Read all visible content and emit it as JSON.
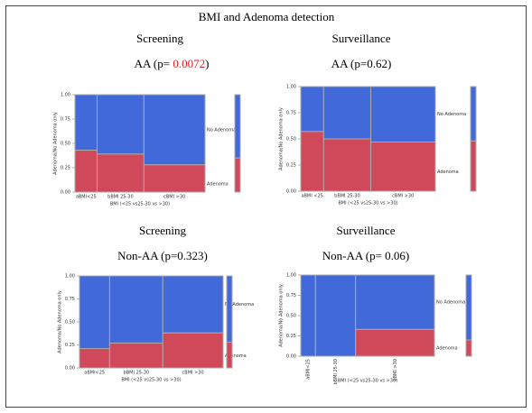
{
  "title": "BMI and Adenoma detection",
  "chart_data": [
    {
      "type": "mosaic",
      "heading": "Screening",
      "subtitle": [
        {
          "text": "AA (p= "
        },
        {
          "text": "0.0072",
          "color": "#e02020"
        },
        {
          "text": ")"
        }
      ],
      "categories": [
        "aBMI<25",
        "bBMI 25-30",
        "cBMI >30"
      ],
      "widths": [
        0.17,
        0.36,
        0.47
      ],
      "series": [
        {
          "name": "No Adenoma",
          "color": "#4169d9",
          "values": [
            0.57,
            0.61,
            0.72
          ],
          "overall": 0.65
        },
        {
          "name": "Adenoma",
          "color": "#d0495a",
          "values": [
            0.43,
            0.39,
            0.28
          ],
          "overall": 0.35
        }
      ],
      "ylim": [
        0,
        1
      ],
      "yticks": [
        {
          "value": 0,
          "label": "0.00"
        },
        {
          "value": 0.25,
          "label": "0.25"
        },
        {
          "value": 0.5,
          "label": "0.50"
        },
        {
          "value": 0.75,
          "label": "0.75"
        },
        {
          "value": 1,
          "label": "1.00"
        }
      ],
      "xlabel": "BMI (<25 vs25-30 vs >30)",
      "ylabel": "Adenoma/No Adenoma only"
    },
    {
      "type": "mosaic",
      "heading": "Surveillance",
      "subtitle": [
        {
          "text": "AA (p=0.62)"
        }
      ],
      "categories": [
        "aBMI <25",
        "bBMI 25-30",
        "cBMI >30"
      ],
      "widths": [
        0.17,
        0.35,
        0.48
      ],
      "series": [
        {
          "name": "No Adenoma",
          "color": "#4169d9",
          "values": [
            0.43,
            0.5,
            0.53
          ],
          "overall": 0.52
        },
        {
          "name": "Adenoma",
          "color": "#d0495a",
          "values": [
            0.57,
            0.5,
            0.47
          ],
          "overall": 0.48
        }
      ],
      "ylim": [
        0,
        1
      ],
      "yticks": [
        {
          "value": 0,
          "label": "0.00"
        },
        {
          "value": 0.25,
          "label": "0.25"
        },
        {
          "value": 0.5,
          "label": "0.50"
        },
        {
          "value": 0.75,
          "label": "0.75"
        },
        {
          "value": 1,
          "label": "1.00"
        }
      ],
      "xlabel": "BMI (<25 vs25-30 vs >30)",
      "ylabel": "Adenoma/No Adenoma only"
    },
    {
      "type": "mosaic",
      "heading": "Screening",
      "subtitle": [
        {
          "text": "Non-AA (p=0.323)"
        }
      ],
      "categories": [
        "aBMI<25",
        "bBMI 25-30",
        "cBMI >30"
      ],
      "widths": [
        0.21,
        0.37,
        0.42
      ],
      "series": [
        {
          "name": "No Adenoma",
          "color": "#4169d9",
          "values": [
            0.79,
            0.73,
            0.62
          ],
          "overall": 0.72
        },
        {
          "name": "Adenoma",
          "color": "#d0495a",
          "values": [
            0.21,
            0.27,
            0.38
          ],
          "overall": 0.28
        }
      ],
      "ylim": [
        0,
        1
      ],
      "yticks": [
        {
          "value": 0,
          "label": "0.00"
        },
        {
          "value": 0.25,
          "label": "0.25"
        },
        {
          "value": 0.5,
          "label": "0.50"
        },
        {
          "value": 0.75,
          "label": "0.75"
        },
        {
          "value": 1,
          "label": "1.00"
        }
      ],
      "xlabel": "BMI (<25 vs25-30 vs >30)",
      "ylabel": "Adenoma/No Adenoma only"
    },
    {
      "type": "mosaic",
      "heading": "Surveillance",
      "subtitle": [
        {
          "text": "Non-AA (p= 0.06)"
        }
      ],
      "categories": [
        "aBMI<25",
        "bBMI 25-30",
        "cBMI >30"
      ],
      "widths": [
        0.11,
        0.3,
        0.59
      ],
      "series": [
        {
          "name": "No Adenoma",
          "color": "#4169d9",
          "values": [
            1,
            1,
            0.67
          ],
          "overall": 0.8
        },
        {
          "name": "Adenoma",
          "color": "#d0495a",
          "values": [
            0,
            0,
            0.33
          ],
          "overall": 0.2
        }
      ],
      "ylim": [
        0,
        1
      ],
      "yticks": [
        {
          "value": 0,
          "label": "0.00"
        },
        {
          "value": 0.25,
          "label": "0.25"
        },
        {
          "value": 0.5,
          "label": "0.50"
        },
        {
          "value": 0.75,
          "label": "0.75"
        },
        {
          "value": 1,
          "label": "1.00"
        }
      ],
      "xlabel": "BMI (<25 vs25-30 vs >30)",
      "ylabel": "Adenoma/No Adenoma only"
    }
  ]
}
